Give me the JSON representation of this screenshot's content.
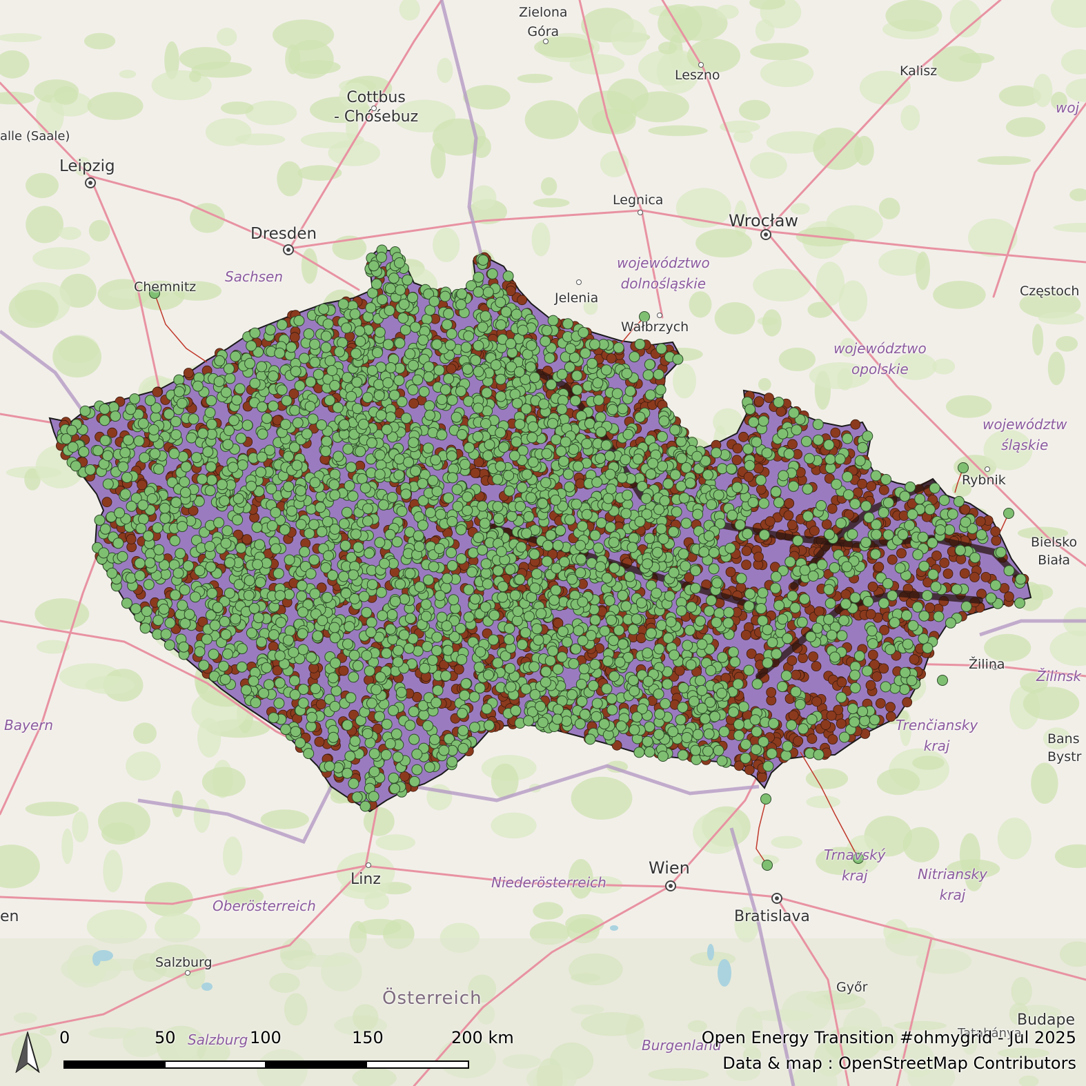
{
  "map": {
    "cities": {
      "zielona": "Zielona\nGóra",
      "leszno": "Leszno",
      "kalisz": "Kalisz",
      "cottbus": "Cottbus\n- Chóśebuz",
      "halle": "alle (Saale)",
      "leipzig": "Leipzig",
      "legnica": "Legnica",
      "wroclaw": "Wrocław",
      "dresden": "Dresden",
      "chemnitz": "Chemnitz",
      "jelenia": "Jelenia",
      "walbrzych": "Wałbrzych",
      "czestochowa": "Częstoch",
      "rybnik": "Rybnik",
      "bielsko": "Bielsko\nBiała",
      "zilina": "Žilina",
      "linz": "Linz",
      "wien": "Wien",
      "bratislava": "Bratislava",
      "salzburg": "Salzburg",
      "gyor": "Győr",
      "budapest": "Budape",
      "banska": "Bans\nBystr",
      "en": "en",
      "tatabanya": "Tatabánya"
    },
    "regions": {
      "woj_top": "woj",
      "sachsen": "Sachsen",
      "dolnoslaskie": "województwo\ndolnośląskie",
      "opolskie": "województwo\nopolskie",
      "slaskie": "województw\nśląskie",
      "bayern": "Bayern",
      "trenciansky": "Trenčiansky\nkraj",
      "zilinsky": "Žilinsk",
      "trnavsky": "Trnavský\nkraj",
      "nitriansky": "Nitriansky\nkraj",
      "niederosterreich": "Niederösterreich",
      "oberosterreich": "Oberösterreich",
      "salzburg_region": "Salzburg",
      "burgenland": "Burgenland"
    },
    "countries": {
      "osterreich": "Österreich"
    },
    "colors": {
      "country_fill": "#9b7bc0",
      "line_brown": "#8b3a1e",
      "substation_green": "#7fbf72",
      "basemap_green": "#cfe3b1",
      "basemap_bg": "#f2efe9"
    }
  },
  "scalebar": {
    "ticks": [
      "0",
      "50",
      "100",
      "150",
      "200 km"
    ]
  },
  "north_arrow": {
    "icon": "north-arrow-icon"
  },
  "credits": {
    "line1": "Open Energy Transition #ohmygrid - Jul 2025",
    "line2": "Data & map : OpenStreetMap Contributors"
  }
}
